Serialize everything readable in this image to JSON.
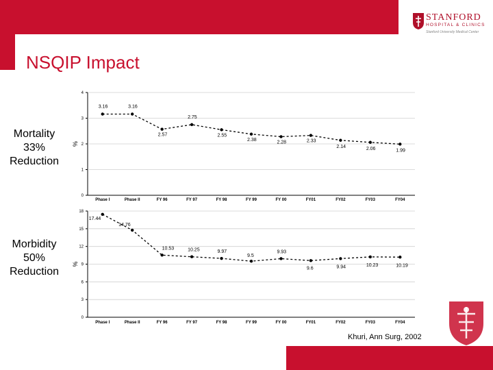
{
  "slide": {
    "title": "NSQIP Impact",
    "citation": "Khuri, Ann Surg, 2002",
    "mortality_label": [
      "Mortality",
      "33%",
      "Reduction"
    ],
    "morbidity_label": [
      "Morbidity",
      "50%",
      "Reduction"
    ]
  },
  "logo": {
    "name": "STANFORD",
    "subtitle": "HOSPITAL & CLINICS",
    "tagline": "Stanford University Medical Center",
    "icon": "cardinal-tree-emblem-icon"
  },
  "colors": {
    "brand_red": "#c8102e",
    "series": "#000000"
  },
  "chart_data": [
    {
      "type": "line",
      "categories": [
        "Phase I",
        "Phase II",
        "FY 96",
        "FY 97",
        "FY 98",
        "FY 99",
        "FY 00",
        "FY01",
        "FY02",
        "FY03",
        "FY04"
      ],
      "series": [
        {
          "values": [
            3.16,
            3.16,
            2.57,
            2.75,
            2.55,
            2.38,
            2.28,
            2.33,
            2.14,
            2.06,
            1.99
          ]
        }
      ],
      "data_labels": [
        "3.16",
        "3.16",
        "2.57",
        "2.75",
        "2.55",
        "2.38",
        "2.28",
        "2.33",
        "2.14",
        "2.06",
        "1.99"
      ],
      "ylabel": "%",
      "ylim": [
        0,
        4
      ],
      "yticks": [
        "0",
        "1",
        "2",
        "3",
        "4"
      ],
      "grid": true
    },
    {
      "type": "line",
      "categories": [
        "Phase I",
        "Phase II",
        "FY 96",
        "FY 97",
        "FY 98",
        "FY 99",
        "FY 00",
        "FY01",
        "FY02",
        "FY03",
        "FY04"
      ],
      "series": [
        {
          "values": [
            17.44,
            14.76,
            10.53,
            10.25,
            9.97,
            9.5,
            9.93,
            9.6,
            9.94,
            10.23,
            10.19
          ]
        }
      ],
      "data_labels": [
        "17.44",
        "14.76",
        "10.53",
        "10.25",
        "9.97",
        "9.5",
        "9.93",
        "9.6",
        "9.94",
        "10.23",
        "10.19"
      ],
      "ylabel": "%",
      "ylim": [
        0,
        18
      ],
      "yticks": [
        "0",
        "3",
        "6",
        "9",
        "12",
        "15",
        "18"
      ],
      "grid": true
    }
  ]
}
